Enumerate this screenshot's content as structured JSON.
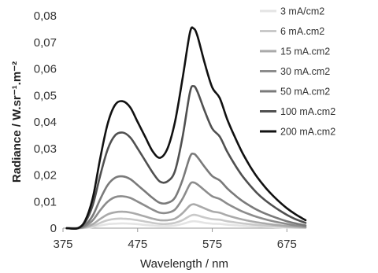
{
  "chart_data": {
    "type": "line",
    "xlabel": "Wavelength  / nm",
    "ylabel": "Radiance / W.sr⁻¹.m⁻²",
    "xlim": [
      375,
      700
    ],
    "ylim": [
      0,
      0.08
    ],
    "x_ticks": [
      "375",
      "475",
      "575",
      "675"
    ],
    "y_ticks": [
      "0",
      "0,01",
      "0,02",
      "0,03",
      "0,04",
      "0,05",
      "0,06",
      "0,07",
      "0,08"
    ],
    "grid": false,
    "legend_position": "right",
    "x": [
      380,
      395,
      405,
      415,
      425,
      435,
      445,
      455,
      465,
      475,
      485,
      495,
      505,
      515,
      525,
      535,
      545,
      550,
      555,
      565,
      575,
      585,
      595,
      605,
      615,
      625,
      635,
      645,
      655,
      665,
      675,
      685,
      695,
      700
    ],
    "series": [
      {
        "name": "3 mA/cm2",
        "color": "#e4e4e4",
        "values": [
          0,
          0,
          0.0001,
          0.0004,
          0.001,
          0.0015,
          0.0017,
          0.0018,
          0.0017,
          0.0015,
          0.0012,
          0.001,
          0.0008,
          0.0008,
          0.001,
          0.0016,
          0.0024,
          0.0026,
          0.0025,
          0.002,
          0.0017,
          0.0016,
          0.0013,
          0.0011,
          0.0009,
          0.0007,
          0.0006,
          0.0005,
          0.0004,
          0.0003,
          0.0002,
          0.0001,
          0.0001,
          0.0001
        ]
      },
      {
        "name": "6 mA.cm2",
        "color": "#c9c9c9",
        "values": [
          0,
          0,
          0.0002,
          0.0008,
          0.002,
          0.003,
          0.0035,
          0.0036,
          0.0034,
          0.003,
          0.0025,
          0.002,
          0.0016,
          0.0016,
          0.002,
          0.003,
          0.0046,
          0.005,
          0.0048,
          0.004,
          0.0034,
          0.0032,
          0.0026,
          0.0022,
          0.0018,
          0.0015,
          0.0012,
          0.001,
          0.0008,
          0.0006,
          0.0004,
          0.0003,
          0.0002,
          0.0002
        ]
      },
      {
        "name": "15 mA.cm2",
        "color": "#aaaaaa",
        "values": [
          0,
          0,
          0.0004,
          0.0015,
          0.0035,
          0.0052,
          0.006,
          0.0062,
          0.0059,
          0.0052,
          0.0044,
          0.0036,
          0.003,
          0.003,
          0.0036,
          0.0056,
          0.0085,
          0.009,
          0.0086,
          0.0074,
          0.0063,
          0.0058,
          0.0048,
          0.004,
          0.0033,
          0.0027,
          0.0022,
          0.0018,
          0.0014,
          0.0011,
          0.0008,
          0.0006,
          0.0004,
          0.0003
        ]
      },
      {
        "name": "30 mA.cm2",
        "color": "#8c8c8c",
        "values": [
          0,
          0,
          0.0008,
          0.003,
          0.0068,
          0.01,
          0.0117,
          0.012,
          0.0114,
          0.01,
          0.0085,
          0.007,
          0.0058,
          0.0058,
          0.007,
          0.011,
          0.0165,
          0.0172,
          0.0165,
          0.0142,
          0.012,
          0.011,
          0.0092,
          0.0077,
          0.0063,
          0.0052,
          0.0042,
          0.0034,
          0.0027,
          0.0021,
          0.0016,
          0.0011,
          0.0008,
          0.0006
        ]
      },
      {
        "name": "50 mA.cm2",
        "color": "#7a7a7a",
        "values": [
          0,
          0,
          0.0013,
          0.0048,
          0.011,
          0.0163,
          0.019,
          0.0195,
          0.0185,
          0.0162,
          0.0138,
          0.0114,
          0.0095,
          0.0095,
          0.0115,
          0.018,
          0.0268,
          0.028,
          0.0268,
          0.023,
          0.0196,
          0.018,
          0.015,
          0.0125,
          0.0103,
          0.0085,
          0.0069,
          0.0056,
          0.0045,
          0.0035,
          0.0026,
          0.0019,
          0.0013,
          0.001
        ]
      },
      {
        "name": "100 mA.cm2",
        "color": "#505050",
        "values": [
          0,
          0,
          0.0024,
          0.0088,
          0.02,
          0.0298,
          0.035,
          0.036,
          0.0342,
          0.03,
          0.0255,
          0.021,
          0.0175,
          0.0176,
          0.0215,
          0.034,
          0.051,
          0.0535,
          0.0515,
          0.044,
          0.0375,
          0.0345,
          0.0288,
          0.024,
          0.0198,
          0.0163,
          0.0132,
          0.0107,
          0.0086,
          0.0067,
          0.005,
          0.0036,
          0.0025,
          0.002
        ]
      },
      {
        "name": "200 mA.cm2",
        "color": "#111111",
        "values": [
          0,
          0,
          0.003,
          0.0115,
          0.0265,
          0.0395,
          0.0465,
          0.0478,
          0.0455,
          0.04,
          0.0345,
          0.029,
          0.0265,
          0.03,
          0.04,
          0.056,
          0.0735,
          0.0752,
          0.0725,
          0.062,
          0.053,
          0.049,
          0.041,
          0.0345,
          0.0286,
          0.0236,
          0.0193,
          0.0157,
          0.0126,
          0.0099,
          0.0075,
          0.0055,
          0.0038,
          0.003
        ]
      }
    ]
  }
}
